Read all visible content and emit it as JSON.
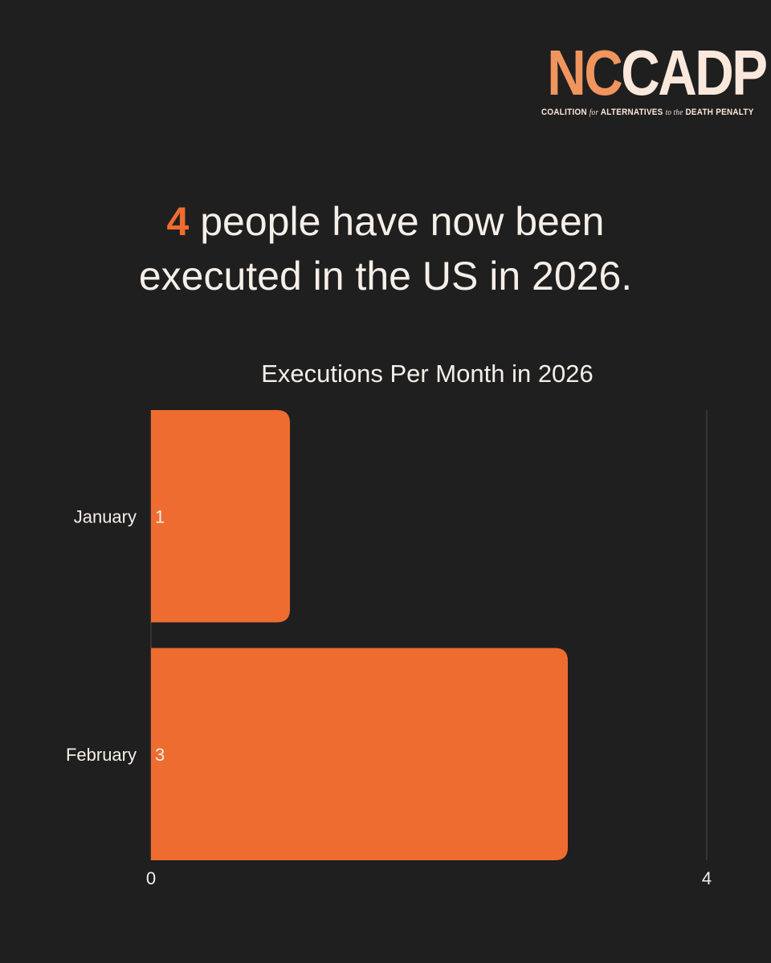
{
  "logo": {
    "nc": "NC",
    "cadp": "CADP",
    "tagline_parts": [
      "COALITION",
      "for",
      "ALTERNATIVES",
      "to the",
      "DEATH PENALTY"
    ]
  },
  "headline": {
    "number": "4",
    "line1_rest": " people have now been",
    "line2": "executed in the US in 2026."
  },
  "colors": {
    "bar": "#ee6c30",
    "background": "#1f1f1f",
    "text": "#f5efe8"
  },
  "chart_data": {
    "type": "bar",
    "orientation": "horizontal",
    "title": "Executions Per Month in 2026",
    "categories": [
      "January",
      "February"
    ],
    "values": [
      1,
      3
    ],
    "data_labels": [
      "1",
      "3"
    ],
    "xlim": [
      0,
      4
    ],
    "x_ticks": [
      "0",
      "4"
    ],
    "xlabel": "",
    "ylabel": "",
    "grid": false,
    "legend": "none"
  }
}
